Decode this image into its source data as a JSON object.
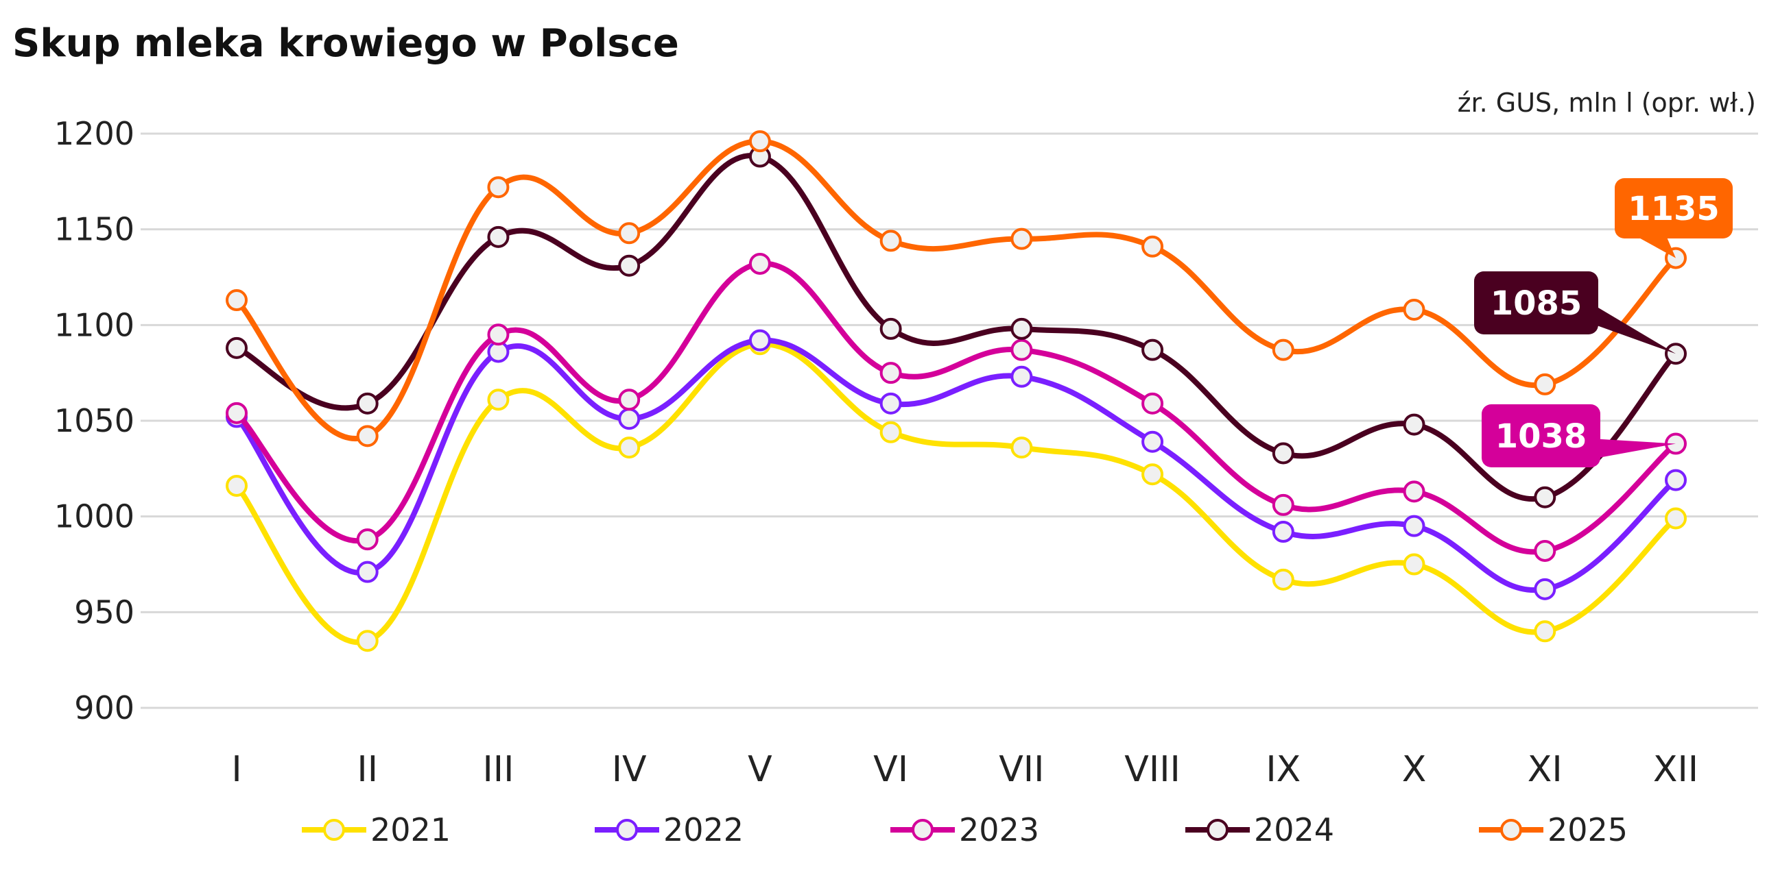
{
  "chart_data": {
    "type": "line",
    "title": "Skup mleka krowiego w Polsce",
    "source_note": "źr. GUS, mln l (opr. wł.)",
    "xlabel": "",
    "ylabel": "",
    "ylim": [
      900,
      1200
    ],
    "yticks": [
      900,
      950,
      1000,
      1050,
      1100,
      1150,
      1200
    ],
    "grid": true,
    "legend_position": "bottom",
    "categories": [
      "I",
      "II",
      "III",
      "IV",
      "V",
      "VI",
      "VII",
      "VIII",
      "IX",
      "X",
      "XI",
      "XII"
    ],
    "series": [
      {
        "name": "2021",
        "color": "#ffe100",
        "values": [
          1016,
          935,
          1061,
          1036,
          1090,
          1044,
          1036,
          1022,
          967,
          975,
          940,
          999
        ]
      },
      {
        "name": "2022",
        "color": "#7a1fff",
        "values": [
          1052,
          971,
          1086,
          1051,
          1092,
          1059,
          1073,
          1039,
          992,
          995,
          962,
          1019
        ]
      },
      {
        "name": "2023",
        "color": "#d4009a",
        "values": [
          1054,
          988,
          1095,
          1061,
          1132,
          1075,
          1087,
          1059,
          1006,
          1013,
          982,
          1038
        ]
      },
      {
        "name": "2024",
        "color": "#4a0020",
        "values": [
          1088,
          1059,
          1146,
          1131,
          1188,
          1098,
          1098,
          1087,
          1033,
          1048,
          1010,
          1085
        ]
      },
      {
        "name": "2025",
        "color": "#ff6600",
        "values": [
          1113,
          1042,
          1172,
          1148,
          1196,
          1144,
          1145,
          1141,
          1087,
          1108,
          1069,
          1135
        ]
      }
    ],
    "annotations": [
      {
        "series": "2025",
        "category": "XII",
        "label": "1135"
      },
      {
        "series": "2024",
        "category": "XII",
        "label": "1085"
      },
      {
        "series": "2023",
        "category": "XII",
        "label": "1038"
      }
    ]
  }
}
